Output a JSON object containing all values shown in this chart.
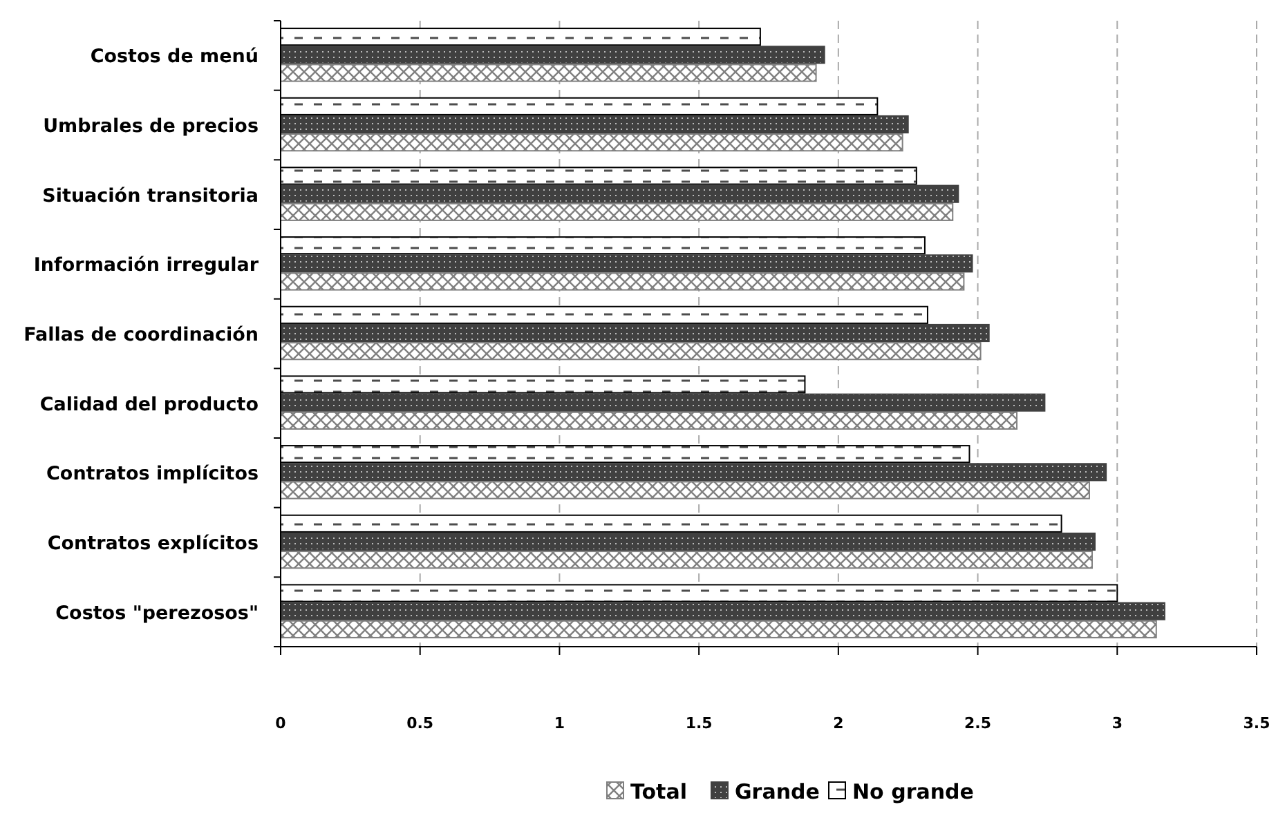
{
  "chart_data": {
    "type": "bar",
    "orientation": "horizontal",
    "categories": [
      "Costos de menú",
      "Umbrales de precios",
      "Situación transitoria",
      "Información irregular",
      "Fallas de coordinación",
      "Calidad del producto",
      "Contratos implícitos",
      "Contratos explícitos",
      "Costos \"perezosos\""
    ],
    "series": [
      {
        "name": "Total",
        "color": "#808080",
        "values": [
          1.92,
          2.23,
          2.41,
          2.45,
          2.51,
          2.64,
          2.9,
          2.91,
          3.14
        ]
      },
      {
        "name": "Grande",
        "color": "#404040",
        "values": [
          1.95,
          2.25,
          2.43,
          2.48,
          2.54,
          2.74,
          2.96,
          2.92,
          3.17
        ]
      },
      {
        "name": "No grande",
        "color": "#000000",
        "values": [
          1.72,
          2.14,
          2.28,
          2.31,
          2.32,
          1.88,
          2.47,
          2.8,
          3.0
        ]
      }
    ],
    "xlim": [
      0,
      3.5
    ],
    "xticks": [
      0,
      0.5,
      1,
      1.5,
      2,
      2.5,
      3,
      {
        "value": 3.5,
        "label": "3.5"
      }
    ],
    "grid": "x",
    "legend": "bottom"
  }
}
